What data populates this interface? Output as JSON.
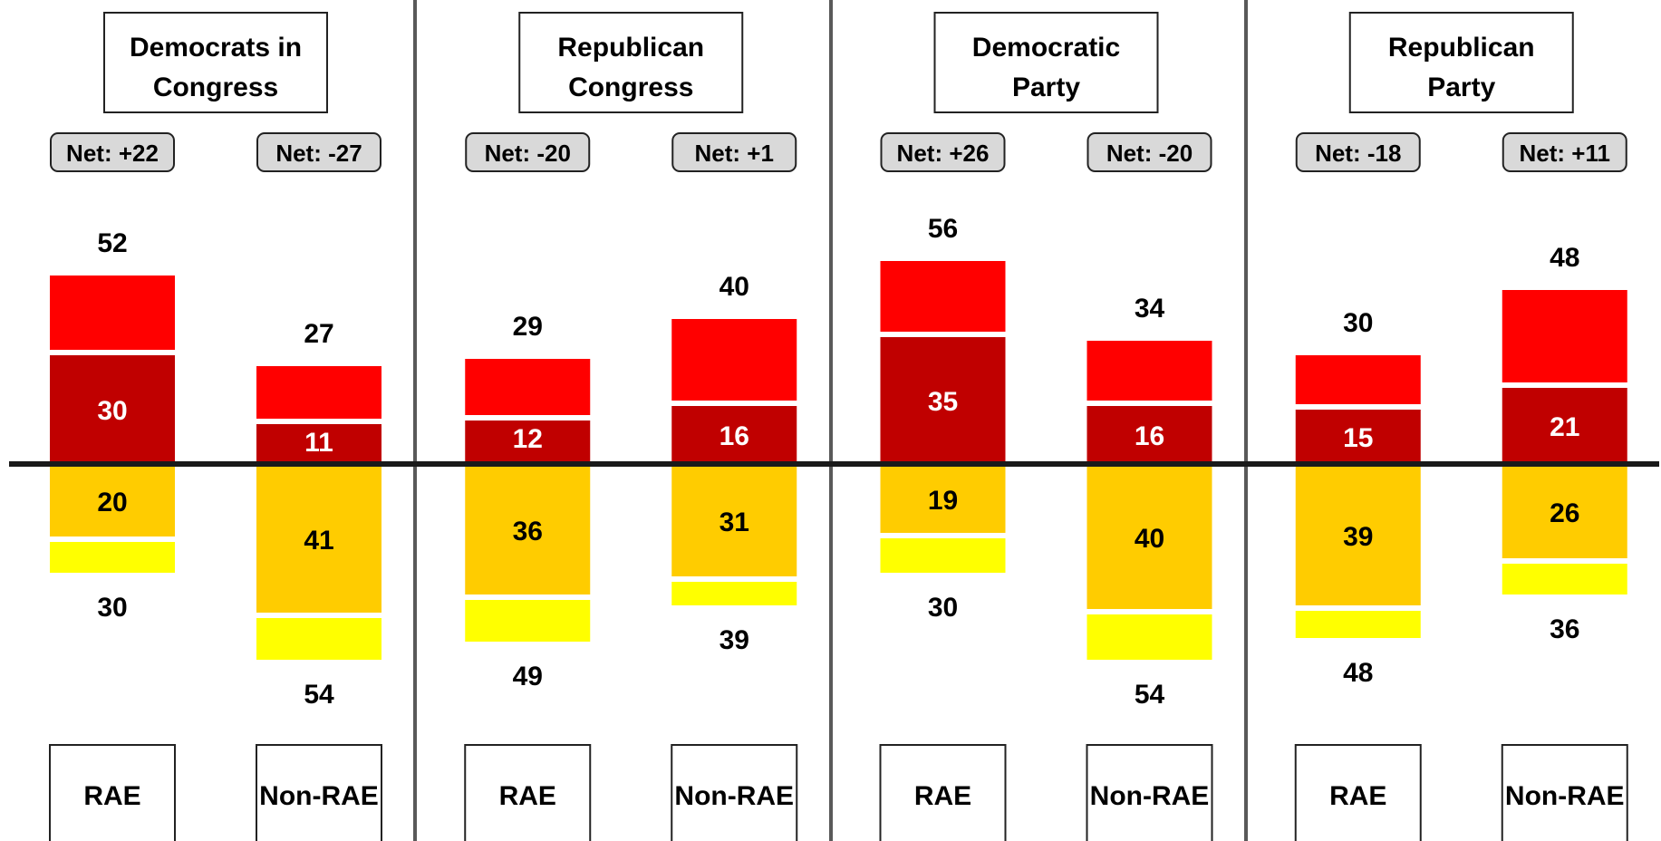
{
  "chart_data": {
    "type": "bar",
    "description_free": true,
    "colors": {
      "upper_outer": "#ff0000",
      "upper_inner": "#c00000",
      "lower_inner": "#ffcc00",
      "lower_outer": "#ffff00",
      "net_badge_fill": "#d9d9d9",
      "baseline": "#1a1a1a",
      "divider": "#595959",
      "inner_label_text": "#ffffff",
      "text": "#000000"
    },
    "panels": [
      {
        "title": "Democrats in Congress",
        "bars": [
          {
            "category": "RAE",
            "net": "Net: +22",
            "upper_total": 52,
            "upper_inner": 30,
            "lower_inner": 20,
            "lower_total": 30
          },
          {
            "category": "Non-RAE",
            "net": "Net: -27",
            "upper_total": 27,
            "upper_inner": 11,
            "lower_inner": 41,
            "lower_total": 54
          }
        ]
      },
      {
        "title": "Republican Congress",
        "bars": [
          {
            "category": "RAE",
            "net": "Net: -20",
            "upper_total": 29,
            "upper_inner": 12,
            "lower_inner": 36,
            "lower_total": 49
          },
          {
            "category": "Non-RAE",
            "net": "Net: +1",
            "upper_total": 40,
            "upper_inner": 16,
            "lower_inner": 31,
            "lower_total": 39
          }
        ]
      },
      {
        "title": "Democratic Party",
        "bars": [
          {
            "category": "RAE",
            "net": "Net: +26",
            "upper_total": 56,
            "upper_inner": 35,
            "lower_inner": 19,
            "lower_total": 30
          },
          {
            "category": "Non-RAE",
            "net": "Net: -20",
            "upper_total": 34,
            "upper_inner": 16,
            "lower_inner": 40,
            "lower_total": 54
          }
        ]
      },
      {
        "title": "Republican Party",
        "bars": [
          {
            "category": "RAE",
            "net": "Net: -18",
            "upper_total": 30,
            "upper_inner": 15,
            "lower_inner": 39,
            "lower_total": 48
          },
          {
            "category": "Non-RAE",
            "net": "Net: +11",
            "upper_total": 48,
            "upper_inner": 21,
            "lower_inner": 26,
            "lower_total": 36
          }
        ]
      }
    ]
  }
}
